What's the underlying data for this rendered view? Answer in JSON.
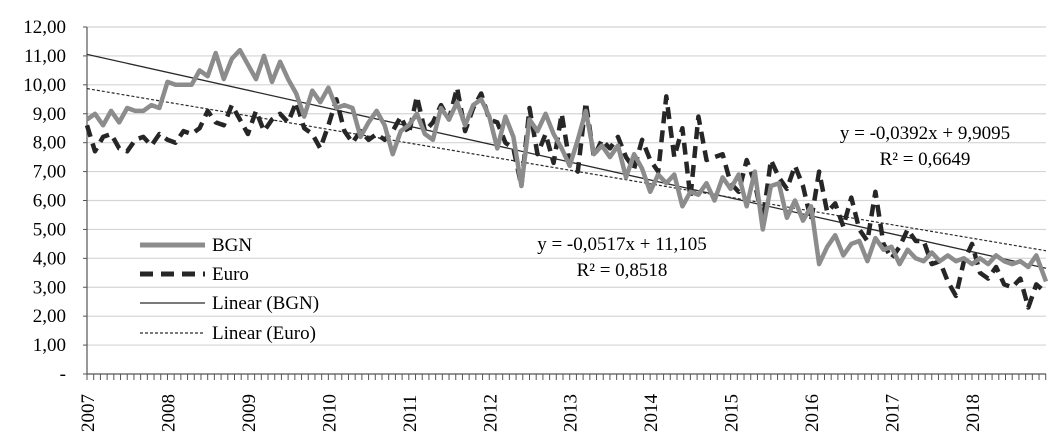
{
  "chart_data": {
    "type": "line",
    "title": "",
    "xlabel": "",
    "ylabel": "",
    "ylim": [
      0,
      12
    ],
    "y_ticks": [
      "-",
      "1,00",
      "2,00",
      "3,00",
      "4,00",
      "5,00",
      "6,00",
      "7,00",
      "8,00",
      "9,00",
      "10,00",
      "11,00",
      "12,00"
    ],
    "x_ticks": [
      "2007",
      "2008",
      "2009",
      "2010",
      "2011",
      "2012",
      "2013",
      "2014",
      "2015",
      "2016",
      "2017",
      "2018"
    ],
    "x_range": [
      2007.0,
      2018.92
    ],
    "grid": "horizontal",
    "legend_position": "bottom-left",
    "colors": {
      "bgn": "#8c8c8c",
      "euro": "#262626",
      "trend_bgn": "#2a2a2a",
      "trend_euro": "#2a2a2a",
      "grid": "#d4d4d4",
      "axis": "#555555"
    },
    "legend": [
      {
        "key": "bgn",
        "label": "BGN",
        "style": "thick-solid"
      },
      {
        "key": "euro",
        "label": "Euro",
        "style": "thick-dashed"
      },
      {
        "key": "trend_bgn",
        "label": "Linear (BGN)",
        "style": "thin-solid"
      },
      {
        "key": "trend_euro",
        "label": "Linear (Euro)",
        "style": "thin-dotted"
      }
    ],
    "series": [
      {
        "name": "BGN",
        "x": [
          2007.0,
          2007.1,
          2007.2,
          2007.3,
          2007.4,
          2007.5,
          2007.6,
          2007.7,
          2007.8,
          2007.9,
          2008.0,
          2008.1,
          2008.2,
          2008.3,
          2008.4,
          2008.5,
          2008.6,
          2008.7,
          2008.8,
          2008.9,
          2009.0,
          2009.1,
          2009.2,
          2009.3,
          2009.4,
          2009.5,
          2009.6,
          2009.7,
          2009.8,
          2009.9,
          2010.0,
          2010.1,
          2010.2,
          2010.3,
          2010.4,
          2010.5,
          2010.6,
          2010.7,
          2010.8,
          2010.9,
          2011.0,
          2011.1,
          2011.2,
          2011.3,
          2011.4,
          2011.5,
          2011.6,
          2011.7,
          2011.8,
          2011.9,
          2012.0,
          2012.1,
          2012.2,
          2012.3,
          2012.4,
          2012.5,
          2012.6,
          2012.7,
          2012.8,
          2012.9,
          2013.0,
          2013.1,
          2013.2,
          2013.3,
          2013.4,
          2013.5,
          2013.6,
          2013.7,
          2013.8,
          2013.9,
          2014.0,
          2014.1,
          2014.2,
          2014.3,
          2014.4,
          2014.5,
          2014.6,
          2014.7,
          2014.8,
          2014.9,
          2015.0,
          2015.1,
          2015.2,
          2015.3,
          2015.4,
          2015.5,
          2015.6,
          2015.7,
          2015.8,
          2015.9,
          2016.0,
          2016.1,
          2016.2,
          2016.3,
          2016.4,
          2016.5,
          2016.6,
          2016.7,
          2016.8,
          2016.9,
          2017.0,
          2017.1,
          2017.2,
          2017.3,
          2017.4,
          2017.5,
          2017.6,
          2017.7,
          2017.8,
          2017.9,
          2018.0,
          2018.1,
          2018.2,
          2018.3,
          2018.4,
          2018.5,
          2018.6,
          2018.7,
          2018.8,
          2018.92
        ],
        "values": [
          8.8,
          9.0,
          8.6,
          9.1,
          8.7,
          9.2,
          9.1,
          9.1,
          9.3,
          9.2,
          10.1,
          10.0,
          10.0,
          10.0,
          10.5,
          10.3,
          11.1,
          10.2,
          10.9,
          11.2,
          10.7,
          10.2,
          11.0,
          10.1,
          10.8,
          10.2,
          9.7,
          8.9,
          9.8,
          9.4,
          9.9,
          9.2,
          9.3,
          9.2,
          8.2,
          8.7,
          9.1,
          8.6,
          7.6,
          8.4,
          8.6,
          9.0,
          8.3,
          8.1,
          9.2,
          8.8,
          9.4,
          8.6,
          9.3,
          9.5,
          8.9,
          7.8,
          8.9,
          8.2,
          6.5,
          8.8,
          8.4,
          9.0,
          8.3,
          7.8,
          7.2,
          8.1,
          9.1,
          7.6,
          7.9,
          7.5,
          7.9,
          6.8,
          7.6,
          7.1,
          6.3,
          6.9,
          6.6,
          6.9,
          5.8,
          6.3,
          6.2,
          6.6,
          6.0,
          6.8,
          6.4,
          6.9,
          5.8,
          7.0,
          5.0,
          6.5,
          6.6,
          5.4,
          6.0,
          5.3,
          5.8,
          3.8,
          4.4,
          4.8,
          4.1,
          4.5,
          4.6,
          3.9,
          4.7,
          4.3,
          4.4,
          3.8,
          4.3,
          4.0,
          3.9,
          4.2,
          3.9,
          4.1,
          3.9,
          4.0,
          3.8,
          4.0,
          3.8,
          4.1,
          3.9,
          3.8,
          3.9,
          3.7,
          4.1,
          3.2
        ]
      },
      {
        "name": "Euro",
        "x": [
          2007.0,
          2007.1,
          2007.2,
          2007.3,
          2007.4,
          2007.5,
          2007.6,
          2007.7,
          2007.8,
          2007.9,
          2008.0,
          2008.1,
          2008.2,
          2008.3,
          2008.4,
          2008.5,
          2008.6,
          2008.7,
          2008.8,
          2008.9,
          2009.0,
          2009.1,
          2009.2,
          2009.3,
          2009.4,
          2009.5,
          2009.6,
          2009.7,
          2009.8,
          2009.9,
          2010.0,
          2010.1,
          2010.2,
          2010.3,
          2010.4,
          2010.5,
          2010.6,
          2010.7,
          2010.8,
          2010.9,
          2011.0,
          2011.1,
          2011.2,
          2011.3,
          2011.4,
          2011.5,
          2011.6,
          2011.7,
          2011.8,
          2011.9,
          2012.0,
          2012.1,
          2012.2,
          2012.3,
          2012.4,
          2012.5,
          2012.6,
          2012.7,
          2012.8,
          2012.9,
          2013.0,
          2013.1,
          2013.2,
          2013.3,
          2013.4,
          2013.5,
          2013.6,
          2013.7,
          2013.8,
          2013.9,
          2014.0,
          2014.1,
          2014.2,
          2014.3,
          2014.4,
          2014.5,
          2014.6,
          2014.7,
          2014.8,
          2014.9,
          2015.0,
          2015.1,
          2015.2,
          2015.3,
          2015.4,
          2015.5,
          2015.6,
          2015.7,
          2015.8,
          2015.9,
          2016.0,
          2016.1,
          2016.2,
          2016.3,
          2016.4,
          2016.5,
          2016.6,
          2016.7,
          2016.8,
          2016.9,
          2017.0,
          2017.1,
          2017.2,
          2017.3,
          2017.4,
          2017.5,
          2017.6,
          2017.7,
          2017.8,
          2017.9,
          2018.0,
          2018.1,
          2018.2,
          2018.3,
          2018.4,
          2018.5,
          2018.6,
          2018.7,
          2018.8,
          2018.92
        ],
        "values": [
          8.6,
          7.7,
          8.2,
          8.3,
          7.8,
          7.7,
          8.1,
          8.2,
          7.9,
          8.3,
          8.1,
          8.0,
          8.4,
          8.3,
          8.5,
          9.1,
          8.7,
          8.6,
          9.3,
          8.8,
          8.3,
          9.1,
          8.4,
          8.8,
          9.0,
          8.7,
          9.4,
          8.5,
          8.3,
          7.8,
          8.6,
          9.5,
          8.4,
          8.0,
          8.4,
          8.1,
          8.3,
          8.1,
          8.4,
          8.9,
          8.3,
          9.6,
          8.4,
          8.7,
          9.3,
          8.8,
          9.9,
          8.4,
          9.2,
          9.7,
          8.8,
          8.7,
          8.0,
          7.8,
          6.5,
          9.2,
          7.6,
          8.3,
          7.3,
          9.0,
          7.3,
          7.0,
          9.4,
          7.5,
          8.1,
          7.8,
          8.2,
          7.5,
          7.1,
          8.1,
          7.4,
          7.0,
          9.6,
          7.5,
          8.5,
          6.1,
          8.9,
          7.4,
          7.5,
          7.6,
          6.6,
          6.3,
          7.4,
          6.6,
          5.3,
          7.4,
          6.8,
          6.4,
          7.2,
          6.5,
          5.3,
          7.0,
          5.6,
          5.9,
          5.1,
          6.1,
          5.0,
          4.6,
          6.3,
          4.5,
          4.0,
          4.4,
          5.0,
          4.6,
          4.6,
          3.8,
          3.9,
          3.2,
          2.7,
          3.9,
          4.5,
          3.5,
          3.3,
          3.7,
          3.1,
          3.0,
          3.3,
          2.3,
          3.1,
          2.8
        ]
      }
    ],
    "trendlines": [
      {
        "name": "Linear (BGN)",
        "series": "BGN",
        "slope": -0.0517,
        "intercept": 11.105,
        "equation": "y = -0,0517x + 11,105",
        "r2": "R² = 0,8518"
      },
      {
        "name": "Linear (Euro)",
        "series": "Euro",
        "slope": -0.0392,
        "intercept": 9.9095,
        "equation": "y = -0,0392x + 9,9095",
        "r2": "R² = 0,6649"
      }
    ]
  }
}
